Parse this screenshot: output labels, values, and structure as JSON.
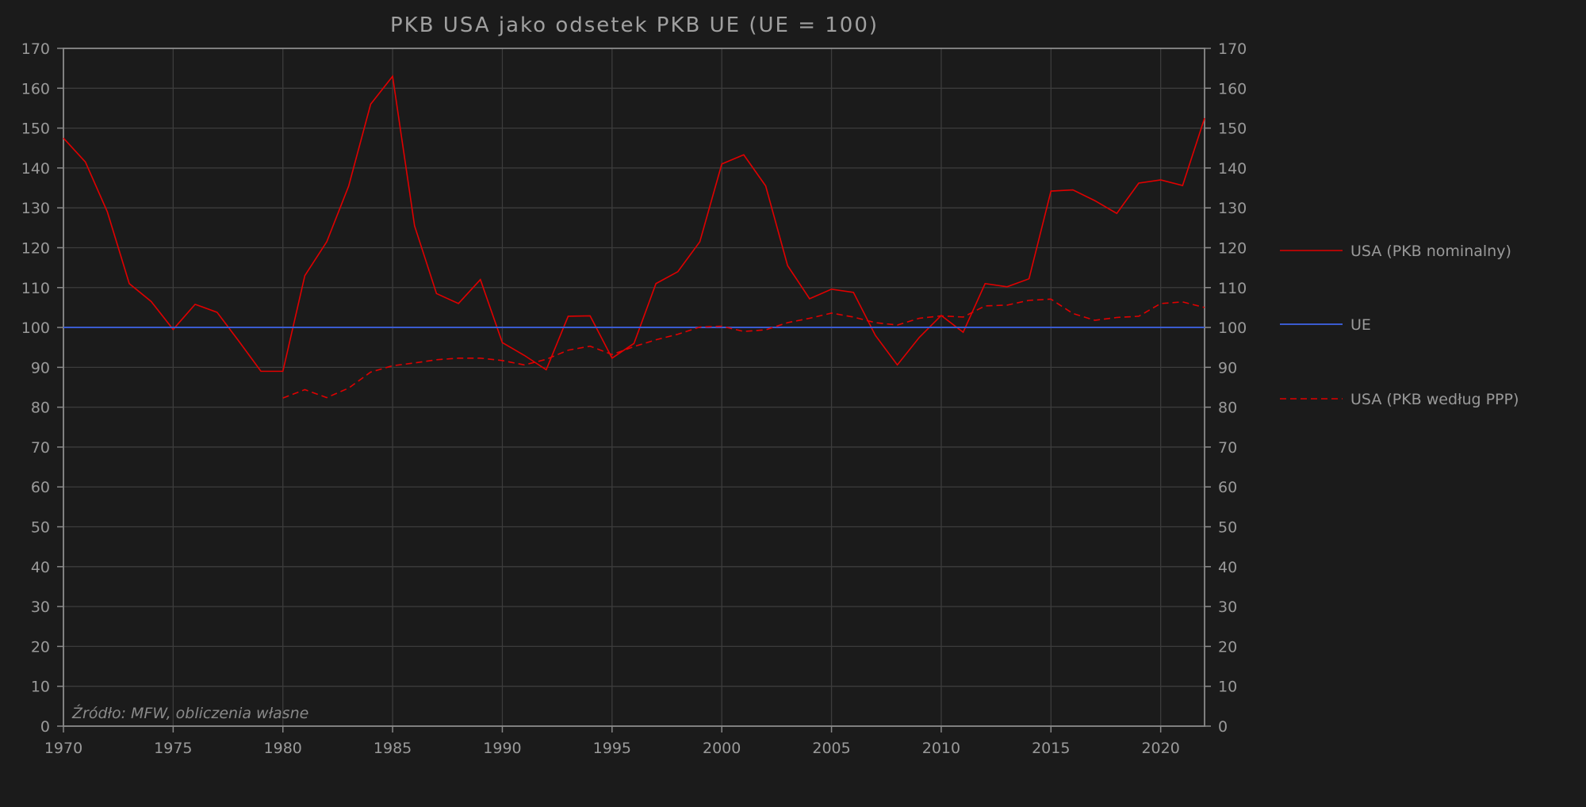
{
  "chart_data": {
    "type": "line",
    "title": "PKB USA jako odsetek PKB UE (UE = 100)",
    "source_note": "Źródło: MFW, obliczenia własne",
    "xlabel": "",
    "ylabel": "",
    "xlim": [
      1970,
      2022
    ],
    "ylim": [
      0,
      170
    ],
    "x_ticks": [
      1970,
      1975,
      1980,
      1985,
      1990,
      1995,
      2000,
      2005,
      2010,
      2015,
      2020
    ],
    "y_ticks": [
      0,
      10,
      20,
      30,
      40,
      50,
      60,
      70,
      80,
      90,
      100,
      110,
      120,
      130,
      140,
      150,
      160,
      170
    ],
    "grid": true,
    "legend_position": "right",
    "series": [
      {
        "name": "USA (PKB nominalny)",
        "color": "#e00000",
        "style": "solid",
        "x_start": 1970,
        "values": [
          147.5,
          141.5,
          129,
          111,
          106.5,
          99.5,
          105.8,
          103.8,
          96.5,
          89,
          89,
          113,
          121.5,
          135.5,
          156,
          163,
          125.5,
          108.5,
          106,
          112,
          96.2,
          93,
          89.4,
          102.8,
          102.9,
          92.3,
          96,
          111,
          114,
          121.5,
          141,
          143.3,
          135.5,
          115.5,
          107.2,
          109.6,
          108.8,
          98,
          90.6,
          97.5,
          103,
          98.8,
          111,
          110.2,
          112.2,
          134.2,
          134.5,
          131.8,
          128.6,
          136.2,
          137,
          135.6,
          152.5
        ]
      },
      {
        "name": "UE",
        "color": "#3a5bd0",
        "style": "solid",
        "x_start": 1970,
        "values": [
          100,
          100
        ]
      },
      {
        "name": "USA (PKB według PPP)",
        "color": "#e00000",
        "style": "dashed",
        "x_start": 1980,
        "values": [
          82.3,
          84.4,
          82.4,
          84.8,
          88.8,
          90.4,
          91.1,
          91.9,
          92.3,
          92.3,
          91.7,
          90.6,
          92,
          94.3,
          95.3,
          93.2,
          95.2,
          96.9,
          98.3,
          100.1,
          100.3,
          99.0,
          99.4,
          101.2,
          102.3,
          103.6,
          102.6,
          101.2,
          100.6,
          102.3,
          102.9,
          102.6,
          105.4,
          105.6,
          106.8,
          107.1,
          103.5,
          101.8,
          102.5,
          102.8,
          106.0,
          106.4,
          105.0
        ]
      }
    ]
  }
}
